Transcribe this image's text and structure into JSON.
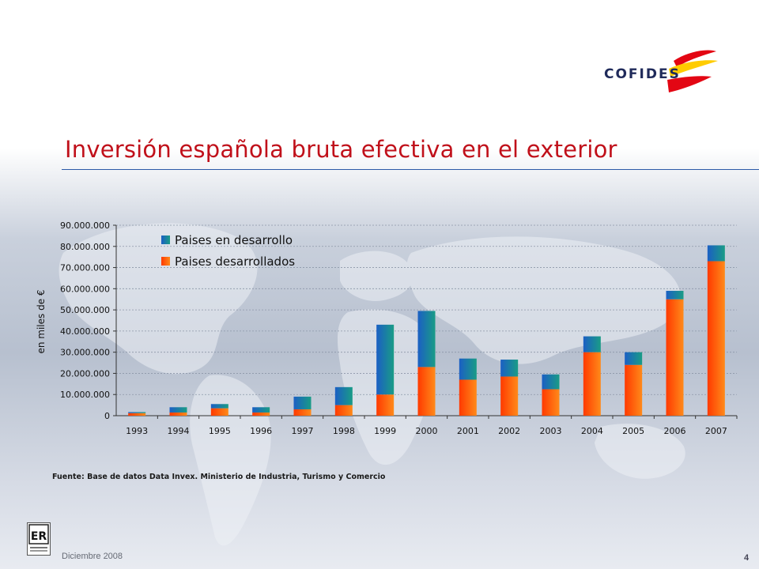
{
  "header": {
    "brand": "COFIDES",
    "title": "Inversión española bruta efectiva en el exterior"
  },
  "colors": {
    "title": "#c0101a",
    "developing": "#1c67c8",
    "developed": "#f65a0c"
  },
  "chart_data": {
    "type": "bar",
    "stacked": true,
    "title": "",
    "xlabel": "",
    "ylabel": "en miles de €",
    "categories": [
      "1993",
      "1994",
      "1995",
      "1996",
      "1997",
      "1998",
      "1999",
      "2000",
      "2001",
      "2002",
      "2003",
      "2004",
      "2005",
      "2006",
      "2007"
    ],
    "series": [
      {
        "name": "Paises desarrollados",
        "values": [
          1200000,
          1500000,
          3500000,
          1500000,
          3000000,
          5000000,
          10000000,
          23000000,
          17000000,
          18500000,
          12500000,
          30000000,
          24000000,
          55000000,
          73000000
        ]
      },
      {
        "name": "Paises en desarrollo",
        "values": [
          500000,
          2500000,
          2000000,
          2500000,
          6000000,
          8500000,
          33000000,
          26500000,
          10000000,
          8000000,
          7000000,
          7500000,
          6000000,
          4000000,
          7500000
        ]
      }
    ],
    "ylim": [
      0,
      90000000
    ],
    "yticks": [
      0,
      10000000,
      20000000,
      30000000,
      40000000,
      50000000,
      60000000,
      70000000,
      80000000,
      90000000
    ],
    "ytick_labels": [
      "0",
      "10.000.000",
      "20.000.000",
      "30.000.000",
      "40.000.000",
      "50.000.000",
      "60.000.000",
      "70.000.000",
      "80.000.000",
      "90.000.000"
    ],
    "grid": "horizontal-dotted",
    "legend": "top-left",
    "legend_entries": [
      "Paises en desarrollo",
      "Paises desarrollados"
    ]
  },
  "footer": {
    "source": "Fuente: Base de datos Data Invex. Ministerio de Industria, Turismo y Comercio",
    "date": "Diciembre 2008",
    "page_number": "4",
    "er_mark": "ER"
  }
}
